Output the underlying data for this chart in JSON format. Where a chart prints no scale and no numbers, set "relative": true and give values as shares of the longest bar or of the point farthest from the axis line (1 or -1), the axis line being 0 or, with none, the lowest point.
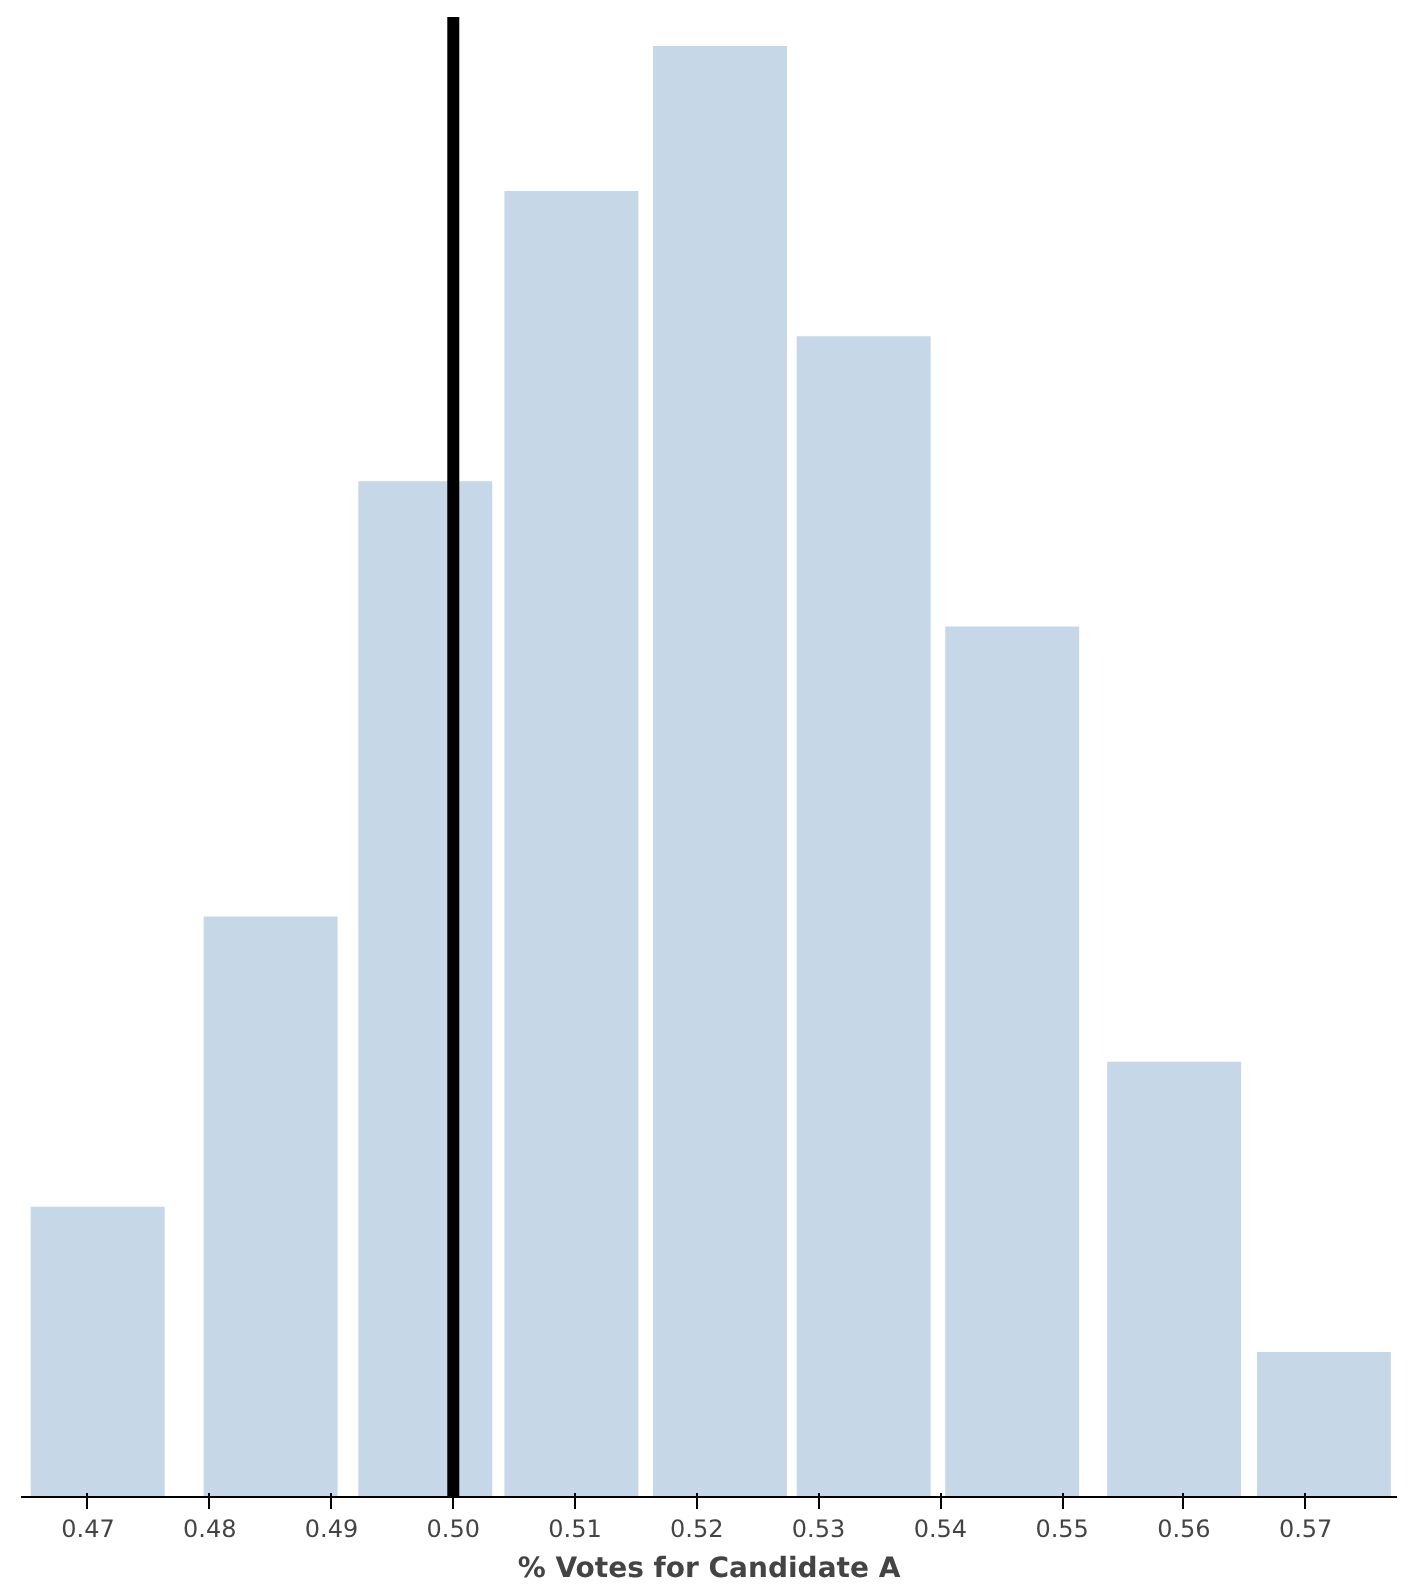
{
  "chart_data": {
    "type": "bar",
    "relative": true,
    "xlabel": "% Votes for Candidate A",
    "x": [
      0.4708,
      0.485,
      0.4977,
      0.5097,
      0.5219,
      0.5337,
      0.5459,
      0.5592,
      0.5715
    ],
    "values": [
      0.2,
      0.4,
      0.7,
      0.9,
      1,
      0.8,
      0.6,
      0.3,
      0.1
    ],
    "color": "#c6d7e7",
    "xlim": [
      0.4645,
      0.5775
    ],
    "xticks": [
      {
        "value": 0.47,
        "label": "0.47"
      },
      {
        "value": 0.48,
        "label": "0.48"
      },
      {
        "value": 0.49,
        "label": "0.49"
      },
      {
        "value": 0.5,
        "label": "0.50"
      },
      {
        "value": 0.51,
        "label": "0.51"
      },
      {
        "value": 0.52,
        "label": "0.52"
      },
      {
        "value": 0.53,
        "label": "0.53"
      },
      {
        "value": 0.54,
        "label": "0.54"
      },
      {
        "value": 0.55,
        "label": "0.55"
      },
      {
        "value": 0.56,
        "label": "0.56"
      },
      {
        "value": 0.57,
        "label": "0.57"
      }
    ],
    "ref_lines": [
      {
        "axis": "x",
        "value": 0.5,
        "color": "#000000"
      }
    ],
    "grid": false
  }
}
